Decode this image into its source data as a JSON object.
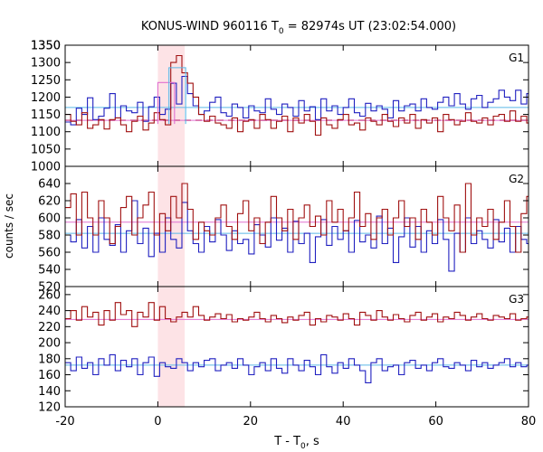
{
  "chart_data": {
    "type": "line",
    "title_main": "KONUS-WIND 960116 T",
    "title_sub": "0",
    "title_rest": " = 82974s UT (23:02:54.000)",
    "xlabel_main": "T - T",
    "xlabel_sub": "0",
    "xlabel_rest": ", s",
    "ylabel": "counts / sec",
    "xlim": [
      -20,
      80
    ],
    "xticks": [
      "-20",
      "0",
      "20",
      "40",
      "60",
      "80"
    ],
    "highlight_interval": [
      0,
      5.8
    ],
    "highlight_color": "#fde3e6",
    "colors": {
      "blue": "#2020c0",
      "red": "#a01010",
      "bg_line": "#5ab8e8",
      "bg_line2": "#e070d0"
    },
    "panels": [
      {
        "name": "G1",
        "ylim": [
          1000,
          1350
        ],
        "yticks": [
          "1000",
          "1050",
          "1100",
          "1150",
          "1200",
          "1250",
          "1300",
          "1350"
        ],
        "bin_width": 1.2,
        "background_levels": [
          {
            "y": 1170,
            "color": "#5ab8e8",
            "style": "solid"
          },
          {
            "y": 1133,
            "color": "#a01010",
            "style": "dashed"
          },
          {
            "y": 1133,
            "color": "#e070d0",
            "style": "solid"
          }
        ],
        "series": [
          {
            "color": "#2020c0",
            "values": [
              1128,
              1120,
              1168,
              1150,
              1198,
              1135,
              1145,
              1168,
              1210,
              1140,
              1175,
              1160,
              1155,
              1185,
              1130,
              1172,
              1200,
              1150,
              1165,
              1240,
              1180,
              1260,
              1210,
              1175,
              1150,
              1160,
              1185,
              1200,
              1155,
              1145,
              1180,
              1170,
              1140,
              1175,
              1160,
              1155,
              1195,
              1165,
              1150,
              1180,
              1170,
              1145,
              1190,
              1160,
              1172,
              1135,
              1195,
              1160,
              1175,
              1150,
              1170,
              1195,
              1155,
              1145,
              1182,
              1160,
              1175,
              1165,
              1140,
              1190,
              1160,
              1175,
              1180,
              1160,
              1195,
              1170,
              1165,
              1185,
              1200,
              1175,
              1210,
              1180,
              1165,
              1195,
              1205,
              1170,
              1185,
              1195,
              1220,
              1200,
              1190,
              1220,
              1180,
              1210
            ]
          },
          {
            "color": "#a01010",
            "values": [
              1150,
              1130,
              1120,
              1155,
              1110,
              1120,
              1135,
              1108,
              1135,
              1140,
              1120,
              1100,
              1130,
              1145,
              1105,
              1125,
              1155,
              1135,
              1120,
              1300,
              1320,
              1270,
              1240,
              1200,
              1150,
              1130,
              1145,
              1125,
              1120,
              1110,
              1140,
              1100,
              1130,
              1135,
              1110,
              1150,
              1135,
              1110,
              1130,
              1145,
              1100,
              1140,
              1125,
              1150,
              1130,
              1090,
              1140,
              1120,
              1110,
              1135,
              1150,
              1120,
              1125,
              1105,
              1140,
              1130,
              1120,
              1150,
              1130,
              1115,
              1140,
              1125,
              1150,
              1110,
              1135,
              1125,
              1140,
              1100,
              1150,
              1135,
              1120,
              1130,
              1155,
              1130,
              1125,
              1140,
              1120,
              1145,
              1150,
              1130,
              1160,
              1130,
              1145,
              1125
            ]
          },
          {
            "color": "#e070d0",
            "steps": [
              {
                "x0": 0,
                "x1": 3.6,
                "y": 1242
              }
            ]
          },
          {
            "color": "#5ab8e8",
            "steps": [
              {
                "x0": 2.4,
                "x1": 6,
                "y": 1285
              }
            ]
          }
        ]
      },
      {
        "name": "G2",
        "ylim": [
          520,
          660
        ],
        "yticks": [
          "520",
          "540",
          "560",
          "580",
          "600",
          "620",
          "640"
        ],
        "bin_width": 1.2,
        "background_levels": [
          {
            "y": 595,
            "color": "#e070d0",
            "style": "solid"
          },
          {
            "y": 582,
            "color": "#5ab8e8",
            "style": "solid"
          }
        ],
        "series": [
          {
            "color": "#2020c0",
            "values": [
              580,
              572,
              598,
              565,
              590,
              560,
              600,
              575,
              568,
              592,
              560,
              585,
              620,
              570,
              588,
              555,
              582,
              560,
              600,
              575,
              565,
              618,
              585,
              570,
              560,
              590,
              572,
              598,
              580,
              562,
              585,
              570,
              575,
              558,
              592,
              580,
              566,
              600,
              574,
              588,
              560,
              596,
              570,
              582,
              548,
              578,
              598,
              568,
              590,
              575,
              585,
              560,
              597,
              572,
              580,
              565,
              602,
              570,
              588,
              548,
              578,
              600,
              566,
              590,
              560,
              585,
              570,
              598,
              575,
              538,
              582,
              560,
              600,
              570,
              585,
              575,
              565,
              598,
              572,
              588,
              560,
              590,
              575,
              570
            ]
          },
          {
            "color": "#a01010",
            "values": [
              612,
              628,
              580,
              630,
              600,
              580,
              620,
              600,
              570,
              590,
              612,
              625,
              580,
              600,
              615,
              630,
              580,
              605,
              585,
              625,
              600,
              640,
              610,
              575,
              595,
              585,
              580,
              600,
              615,
              590,
              575,
              605,
              620,
              585,
              600,
              570,
              595,
              625,
              600,
              585,
              610,
              575,
              600,
              615,
              590,
              602,
              580,
              620,
              595,
              610,
              585,
              600,
              630,
              590,
              605,
              575,
              600,
              610,
              580,
              600,
              620,
              590,
              600,
              575,
              610,
              595,
              580,
              625,
              600,
              585,
              615,
              560,
              640,
              580,
              600,
              590,
              610,
              575,
              595,
              620,
              590,
              560,
              605,
              625
            ]
          }
        ]
      },
      {
        "name": "G3",
        "ylim": [
          120,
          270
        ],
        "yticks": [
          "120",
          "140",
          "160",
          "180",
          "200",
          "220",
          "240",
          "260"
        ],
        "bin_width": 1.2,
        "background_levels": [
          {
            "y": 229,
            "color": "#e070d0",
            "style": "solid"
          },
          {
            "y": 172,
            "color": "#5ab8e8",
            "style": "solid"
          }
        ],
        "series": [
          {
            "color": "#2020c0",
            "values": [
              175,
              165,
              182,
              168,
              175,
              160,
              180,
              172,
              185,
              165,
              178,
              170,
              180,
              160,
              175,
              182,
              158,
              175,
              170,
              168,
              180,
              175,
              165,
              175,
              170,
              178,
              180,
              165,
              172,
              175,
              168,
              180,
              172,
              160,
              170,
              175,
              165,
              180,
              168,
              162,
              180,
              172,
              165,
              178,
              170,
              160,
              185,
              170,
              162,
              175,
              168,
              180,
              172,
              165,
              150,
              175,
              180,
              165,
              170,
              172,
              160,
              175,
              178,
              168,
              172,
              165,
              175,
              180,
              170,
              168,
              175,
              172,
              165,
              178,
              170,
              175,
              168,
              172,
              175,
              180,
              170,
              175,
              170,
              172
            ]
          },
          {
            "color": "#a01010",
            "values": [
              230,
              240,
              228,
              245,
              232,
              238,
              222,
              240,
              228,
              250,
              235,
              240,
              220,
              238,
              232,
              250,
              228,
              245,
              230,
              226,
              232,
              238,
              232,
              245,
              234,
              228,
              232,
              236,
              230,
              235,
              226,
              230,
              228,
              232,
              238,
              230,
              226,
              234,
              230,
              225,
              232,
              228,
              234,
              238,
              222,
              230,
              226,
              234,
              232,
              228,
              236,
              230,
              222,
              238,
              234,
              228,
              240,
              232,
              228,
              235,
              230,
              226,
              234,
              238,
              228,
              232,
              236,
              226,
              232,
              230,
              238,
              234,
              228,
              232,
              236,
              230,
              228,
              234,
              232,
              230,
              236,
              228,
              230,
              232
            ]
          }
        ]
      }
    ]
  }
}
